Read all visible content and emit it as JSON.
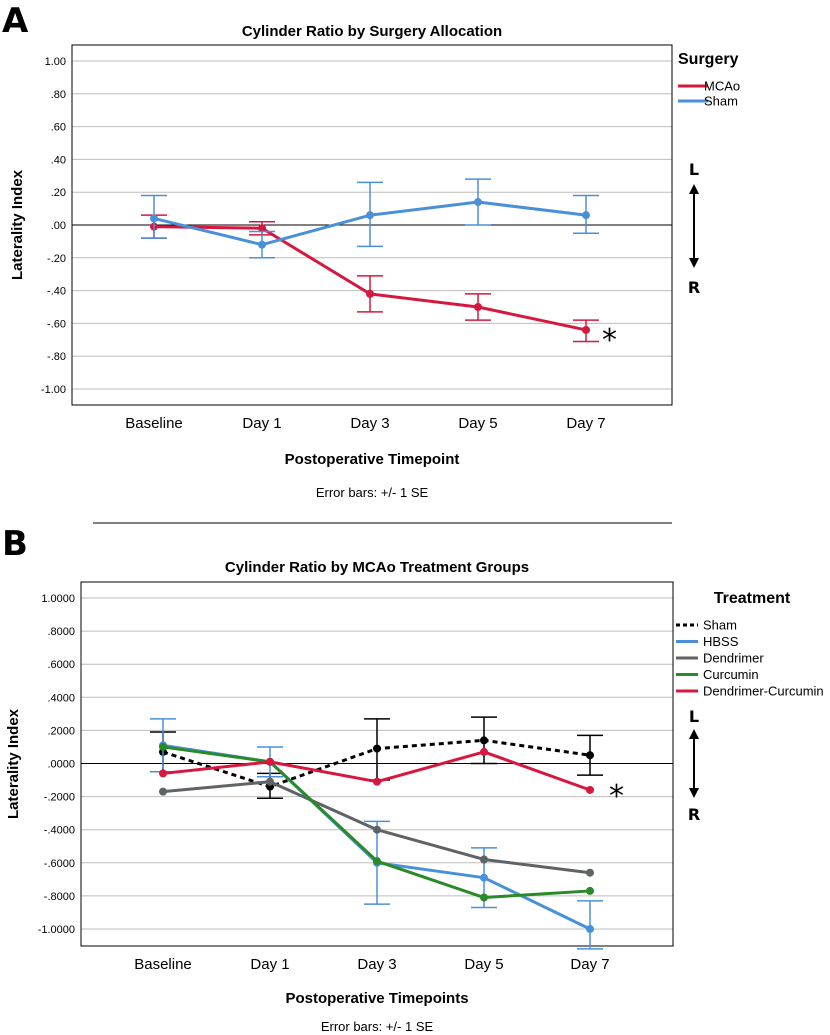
{
  "chart_data": [
    {
      "type": "line",
      "panel": "A",
      "title": "Cylinder Ratio by Surgery Allocation",
      "xlabel": "Postoperative Timepoint",
      "ylabel": "Laterality Index",
      "categories": [
        "Baseline",
        "Day 1",
        "Day 3",
        "Day 5",
        "Day 7"
      ],
      "yticks": [
        "1.00",
        ".80",
        ".60",
        ".40",
        ".20",
        ".00",
        "-.20",
        "-.40",
        "-.60",
        "-.80",
        "-1.00"
      ],
      "ylim": [
        -1.0,
        1.0
      ],
      "grid": true,
      "legend_title": "Surgery",
      "legend_position": "top-right",
      "series": [
        {
          "name": "MCAo",
          "color": "#d6173f",
          "dash": false,
          "values": [
            -0.01,
            -0.02,
            -0.42,
            -0.5,
            -0.64
          ],
          "err_low": [
            -0.08,
            -0.06,
            -0.53,
            -0.58,
            -0.71
          ],
          "err_high": [
            0.06,
            0.02,
            -0.31,
            -0.42,
            -0.58
          ]
        },
        {
          "name": "Sham",
          "color": "#4a90d9",
          "dash": false,
          "values": [
            0.04,
            -0.12,
            0.06,
            0.14,
            0.06
          ],
          "err_low": [
            -0.08,
            -0.2,
            -0.13,
            0.0,
            -0.05
          ],
          "err_high": [
            0.18,
            -0.04,
            0.26,
            0.28,
            0.18
          ]
        }
      ],
      "error_note": "Error bars: +/- 1 SE",
      "direction_top": "L",
      "direction_bottom": "R",
      "significance": "*"
    },
    {
      "type": "line",
      "panel": "B",
      "title": "Cylinder Ratio by MCAo Treatment Groups",
      "xlabel": "Postoperative Timepoints",
      "ylabel": "Laterality Index",
      "categories": [
        "Baseline",
        "Day 1",
        "Day 3",
        "Day 5",
        "Day 7"
      ],
      "yticks": [
        "1.0000",
        ".8000",
        ".6000",
        ".4000",
        ".2000",
        ".0000",
        "-.2000",
        "-.4000",
        "-.6000",
        "-.8000",
        "-1.0000"
      ],
      "ylim": [
        -1.0,
        1.0
      ],
      "grid": true,
      "legend_title": "Treatment",
      "legend_position": "top-right",
      "series": [
        {
          "name": "Sham",
          "color": "#000000",
          "dash": true,
          "values": [
            0.07,
            -0.14,
            0.09,
            0.14,
            0.05
          ],
          "err_low": [
            -0.05,
            -0.21,
            -0.1,
            0.0,
            -0.07
          ],
          "err_high": [
            0.19,
            -0.06,
            0.27,
            0.28,
            0.17
          ]
        },
        {
          "name": "HBSS",
          "color": "#4a90d9",
          "dash": false,
          "values": [
            0.11,
            0.01,
            -0.6,
            -0.69,
            -1.0
          ],
          "err_low": [
            -0.05,
            -0.08,
            -0.85,
            -0.87,
            -1.12
          ],
          "err_high": [
            0.27,
            0.1,
            -0.35,
            -0.51,
            -0.83
          ]
        },
        {
          "name": "Dendrimer",
          "color": "#5f6366",
          "dash": false,
          "values": [
            -0.17,
            -0.11,
            -0.4,
            -0.58,
            -0.66
          ],
          "err_low": [],
          "err_high": []
        },
        {
          "name": "Curcumin",
          "color": "#2a8a2a",
          "dash": false,
          "values": [
            0.1,
            0.01,
            -0.59,
            -0.81,
            -0.77
          ],
          "err_low": [],
          "err_high": []
        },
        {
          "name": "Dendrimer-Curcumin",
          "color": "#d6173f",
          "dash": false,
          "values": [
            -0.06,
            0.01,
            -0.11,
            0.07,
            -0.16
          ],
          "err_low": [],
          "err_high": []
        }
      ],
      "error_note": "Error bars: +/- 1 SE",
      "direction_top": "L",
      "direction_bottom": "R",
      "significance": "*"
    }
  ]
}
